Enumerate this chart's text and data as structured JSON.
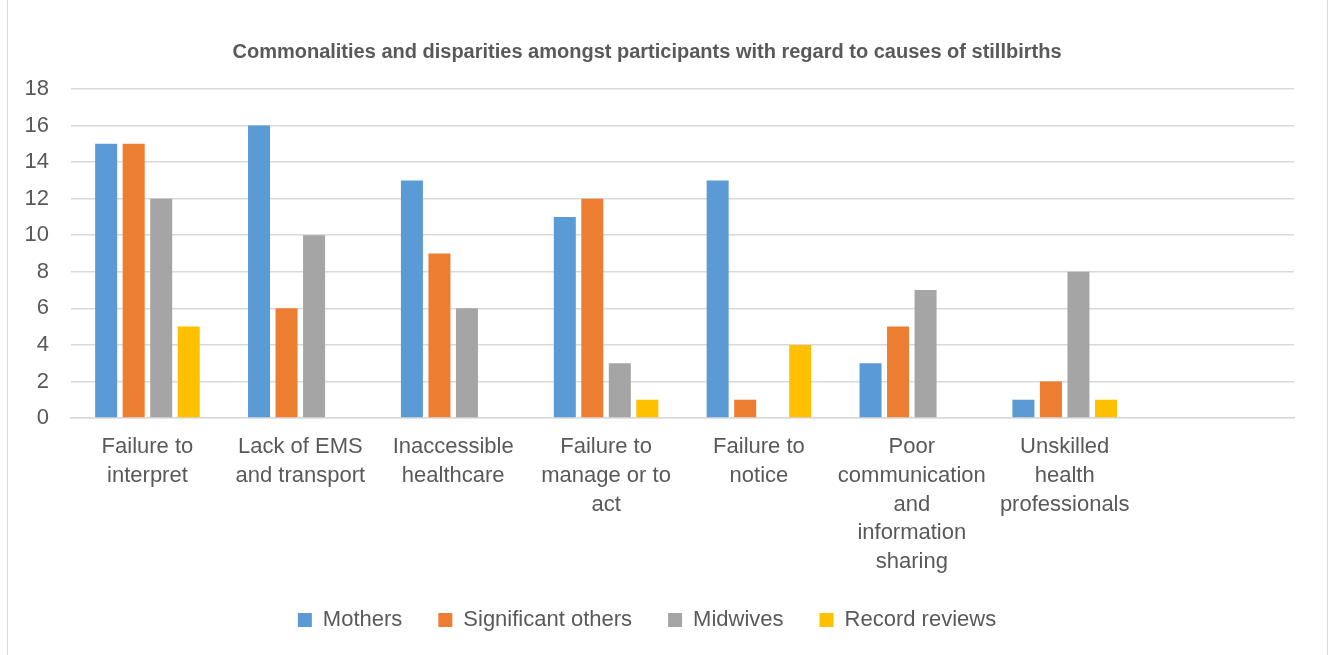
{
  "chart_data": {
    "type": "bar",
    "title": "Commonalities and disparities amongst participants with regard to causes of stillbirths",
    "categories": [
      "Failure to interpret",
      "Lack of EMS and transport",
      "Inaccessible healthcare",
      "Failure to manage or to act",
      "Failure to notice",
      "Poor communication and information sharing",
      "Unskilled health professionals",
      null
    ],
    "series": [
      {
        "name": "Mothers",
        "color": "#5b9bd5",
        "values": [
          15,
          16,
          13,
          11,
          13,
          3,
          1,
          null
        ]
      },
      {
        "name": "Significant others",
        "color": "#ed7d31",
        "values": [
          15,
          6,
          9,
          12,
          1,
          5,
          2,
          null
        ]
      },
      {
        "name": "Midwives",
        "color": "#a5a5a5",
        "values": [
          12,
          10,
          6,
          3,
          0,
          7,
          8,
          null
        ]
      },
      {
        "name": "Record reviews",
        "color": "#ffc000",
        "values": [
          5,
          0,
          0,
          1,
          4,
          0,
          1,
          null
        ]
      }
    ],
    "ylim": [
      0,
      18
    ],
    "yticks": [
      0,
      2,
      4,
      6,
      8,
      10,
      12,
      14,
      16,
      18
    ],
    "grid": "y",
    "legend": "bottom"
  }
}
